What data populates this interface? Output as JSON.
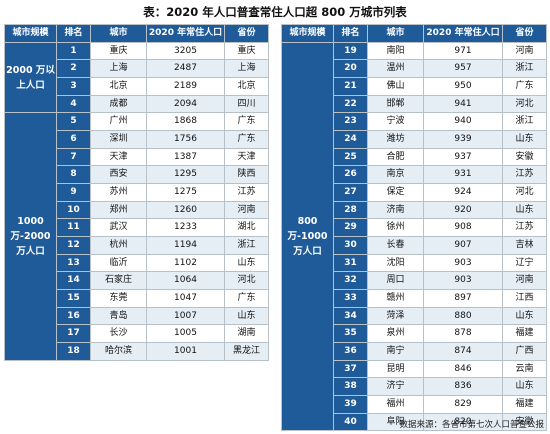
{
  "title": "表：2020 年人口普查常住人口超 800 万城市列表",
  "left_headers": [
    "城市规模",
    "排名",
    "城市",
    "2020 年常住人口",
    "省份"
  ],
  "right_headers": [
    "城市规模",
    "排名",
    "城市",
    "2020 年常住人口",
    "省份"
  ],
  "groups": {
    "g1": "2000 万以上人口",
    "g2": "1000 万-2000 万人口",
    "g3": "800 万-1000 万人口"
  },
  "left_rows": [
    {
      "rank": "1",
      "city": "重庆",
      "pop": "3205",
      "prov": "重庆"
    },
    {
      "rank": "2",
      "city": "上海",
      "pop": "2487",
      "prov": "上海"
    },
    {
      "rank": "3",
      "city": "北京",
      "pop": "2189",
      "prov": "北京"
    },
    {
      "rank": "4",
      "city": "成都",
      "pop": "2094",
      "prov": "四川"
    },
    {
      "rank": "5",
      "city": "广州",
      "pop": "1868",
      "prov": "广东"
    },
    {
      "rank": "6",
      "city": "深圳",
      "pop": "1756",
      "prov": "广东"
    },
    {
      "rank": "7",
      "city": "天津",
      "pop": "1387",
      "prov": "天津"
    },
    {
      "rank": "8",
      "city": "西安",
      "pop": "1295",
      "prov": "陕西"
    },
    {
      "rank": "9",
      "city": "苏州",
      "pop": "1275",
      "prov": "江苏"
    },
    {
      "rank": "10",
      "city": "郑州",
      "pop": "1260",
      "prov": "河南"
    },
    {
      "rank": "11",
      "city": "武汉",
      "pop": "1233",
      "prov": "湖北"
    },
    {
      "rank": "12",
      "city": "杭州",
      "pop": "1194",
      "prov": "浙江"
    },
    {
      "rank": "13",
      "city": "临沂",
      "pop": "1102",
      "prov": "山东"
    },
    {
      "rank": "14",
      "city": "石家庄",
      "pop": "1064",
      "prov": "河北"
    },
    {
      "rank": "15",
      "city": "东莞",
      "pop": "1047",
      "prov": "广东"
    },
    {
      "rank": "16",
      "city": "青岛",
      "pop": "1007",
      "prov": "山东"
    },
    {
      "rank": "17",
      "city": "长沙",
      "pop": "1005",
      "prov": "湖南"
    },
    {
      "rank": "18",
      "city": "哈尔滨",
      "pop": "1001",
      "prov": "黑龙江"
    }
  ],
  "right_rows": [
    {
      "rank": "19",
      "city": "南阳",
      "pop": "971",
      "prov": "河南"
    },
    {
      "rank": "20",
      "city": "温州",
      "pop": "957",
      "prov": "浙江"
    },
    {
      "rank": "21",
      "city": "佛山",
      "pop": "950",
      "prov": "广东"
    },
    {
      "rank": "22",
      "city": "邯郸",
      "pop": "941",
      "prov": "河北"
    },
    {
      "rank": "23",
      "city": "宁波",
      "pop": "940",
      "prov": "浙江"
    },
    {
      "rank": "24",
      "city": "潍坊",
      "pop": "939",
      "prov": "山东"
    },
    {
      "rank": "25",
      "city": "合肥",
      "pop": "937",
      "prov": "安徽"
    },
    {
      "rank": "26",
      "city": "南京",
      "pop": "931",
      "prov": "江苏"
    },
    {
      "rank": "27",
      "city": "保定",
      "pop": "924",
      "prov": "河北"
    },
    {
      "rank": "28",
      "city": "济南",
      "pop": "920",
      "prov": "山东"
    },
    {
      "rank": "29",
      "city": "徐州",
      "pop": "908",
      "prov": "江苏"
    },
    {
      "rank": "30",
      "city": "长春",
      "pop": "907",
      "prov": "吉林"
    },
    {
      "rank": "31",
      "city": "沈阳",
      "pop": "903",
      "prov": "辽宁"
    },
    {
      "rank": "32",
      "city": "周口",
      "pop": "903",
      "prov": "河南"
    },
    {
      "rank": "33",
      "city": "赣州",
      "pop": "897",
      "prov": "江西"
    },
    {
      "rank": "34",
      "city": "菏泽",
      "pop": "880",
      "prov": "山东"
    },
    {
      "rank": "35",
      "city": "泉州",
      "pop": "878",
      "prov": "福建"
    },
    {
      "rank": "36",
      "city": "南宁",
      "pop": "874",
      "prov": "广西"
    },
    {
      "rank": "37",
      "city": "昆明",
      "pop": "846",
      "prov": "云南"
    },
    {
      "rank": "38",
      "city": "济宁",
      "pop": "836",
      "prov": "山东"
    },
    {
      "rank": "39",
      "city": "福州",
      "pop": "829",
      "prov": "福建"
    },
    {
      "rank": "40",
      "city": "阜阳",
      "pop": "820",
      "prov": "安徽"
    }
  ],
  "source": "数据来源：各省市第七次人口普查公报"
}
